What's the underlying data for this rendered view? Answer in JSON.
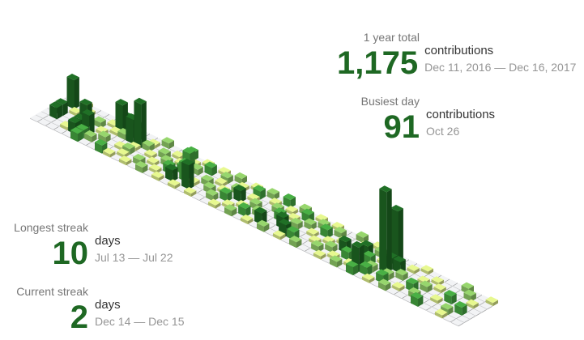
{
  "chart_data": {
    "type": "isometric-contribution-calendar",
    "date_range": "Dec 11, 2016 — Dec 16, 2017",
    "levels": [
      "#ebedf0",
      "#d6e685",
      "#8cc665",
      "#44a340",
      "#1e6823"
    ],
    "cells": [
      {
        "w": 1,
        "d": 1,
        "c": 1
      },
      {
        "w": 1,
        "d": 3,
        "c": 4
      },
      {
        "w": 1,
        "d": 4,
        "c": 4
      },
      {
        "w": 2,
        "d": 0,
        "c": 1
      },
      {
        "w": 2,
        "d": 2,
        "c": 1
      },
      {
        "w": 3,
        "d": 1,
        "c": 1
      },
      {
        "w": 3,
        "d": 5,
        "c": 1
      },
      {
        "w": 4,
        "d": 3,
        "c": 3
      },
      {
        "w": 4,
        "d": 4,
        "c": 4
      },
      {
        "w": 4,
        "d": 5,
        "c": 4
      },
      {
        "w": 5,
        "d": 2,
        "c": 2
      },
      {
        "w": 5,
        "d": 4,
        "c": 2
      },
      {
        "w": 5,
        "d": 5,
        "c": 3
      },
      {
        "w": 5,
        "d": 6,
        "c": 3
      },
      {
        "w": 6,
        "d": 1,
        "c": 1
      },
      {
        "w": 6,
        "d": 3,
        "c": 1
      },
      {
        "w": 6,
        "d": 5,
        "c": 2
      },
      {
        "w": 7,
        "d": 0,
        "c": 4
      },
      {
        "w": 7,
        "d": 2,
        "c": 1
      },
      {
        "w": 7,
        "d": 4,
        "c": 2
      },
      {
        "w": 8,
        "d": 0,
        "c": 3
      },
      {
        "w": 8,
        "d": 2,
        "c": 2
      },
      {
        "w": 8,
        "d": 6,
        "c": 3
      },
      {
        "w": 9,
        "d": 1,
        "c": 3
      },
      {
        "w": 9,
        "d": 2,
        "c": 4
      },
      {
        "w": 9,
        "d": 4,
        "c": 1
      },
      {
        "w": 9,
        "d": 6,
        "c": 1
      },
      {
        "w": 10,
        "d": 3,
        "c": 1
      },
      {
        "w": 10,
        "d": 4,
        "c": 2
      },
      {
        "w": 10,
        "d": 5,
        "c": 1
      },
      {
        "w": 11,
        "d": 1,
        "c": 1
      },
      {
        "w": 11,
        "d": 2,
        "c": 2
      },
      {
        "w": 11,
        "d": 6,
        "c": 1
      },
      {
        "w": 12,
        "d": 0,
        "c": 2
      },
      {
        "w": 12,
        "d": 3,
        "c": 1
      },
      {
        "w": 12,
        "d": 5,
        "c": 2
      },
      {
        "w": 13,
        "d": 2,
        "c": 2
      },
      {
        "w": 13,
        "d": 4,
        "c": 1
      },
      {
        "w": 13,
        "d": 6,
        "c": 2
      },
      {
        "w": 14,
        "d": 1,
        "c": 1
      },
      {
        "w": 14,
        "d": 3,
        "c": 2
      },
      {
        "w": 14,
        "d": 5,
        "c": 1
      },
      {
        "w": 15,
        "d": 0,
        "c": 3
      },
      {
        "w": 15,
        "d": 2,
        "c": 1
      },
      {
        "w": 15,
        "d": 4,
        "c": 3
      },
      {
        "w": 15,
        "d": 6,
        "c": 1
      },
      {
        "w": 16,
        "d": 1,
        "c": 1
      },
      {
        "w": 16,
        "d": 3,
        "c": 3
      },
      {
        "w": 16,
        "d": 5,
        "c": 4
      },
      {
        "w": 17,
        "d": 0,
        "c": 1
      },
      {
        "w": 17,
        "d": 2,
        "c": 2
      },
      {
        "w": 17,
        "d": 6,
        "c": 1
      },
      {
        "w": 18,
        "d": 1,
        "c": 3
      },
      {
        "w": 18,
        "d": 4,
        "c": 1
      },
      {
        "w": 18,
        "d": 5,
        "c": 2
      },
      {
        "w": 19,
        "d": 0,
        "c": 1
      },
      {
        "w": 19,
        "d": 3,
        "c": 2
      },
      {
        "w": 19,
        "d": 6,
        "c": 1
      },
      {
        "w": 20,
        "d": 1,
        "c": 2
      },
      {
        "w": 20,
        "d": 2,
        "c": 1
      },
      {
        "w": 20,
        "d": 4,
        "c": 2
      },
      {
        "w": 21,
        "d": 0,
        "c": 2
      },
      {
        "w": 21,
        "d": 3,
        "c": 1
      },
      {
        "w": 21,
        "d": 5,
        "c": 2
      },
      {
        "w": 22,
        "d": 1,
        "c": 1
      },
      {
        "w": 22,
        "d": 2,
        "c": 2
      },
      {
        "w": 22,
        "d": 4,
        "c": 3
      },
      {
        "w": 22,
        "d": 6,
        "c": 1
      },
      {
        "w": 23,
        "d": 0,
        "c": 1
      },
      {
        "w": 23,
        "d": 3,
        "c": 4
      },
      {
        "w": 23,
        "d": 5,
        "c": 1
      },
      {
        "w": 24,
        "d": 1,
        "c": 3
      },
      {
        "w": 24,
        "d": 2,
        "c": 1
      },
      {
        "w": 24,
        "d": 4,
        "c": 1
      },
      {
        "w": 24,
        "d": 6,
        "c": 2
      },
      {
        "w": 25,
        "d": 0,
        "c": 2
      },
      {
        "w": 25,
        "d": 3,
        "c": 2
      },
      {
        "w": 25,
        "d": 5,
        "c": 3
      },
      {
        "w": 26,
        "d": 1,
        "c": 1
      },
      {
        "w": 26,
        "d": 4,
        "c": 2
      },
      {
        "w": 26,
        "d": 6,
        "c": 1
      },
      {
        "w": 27,
        "d": 0,
        "c": 3
      },
      {
        "w": 27,
        "d": 2,
        "c": 2
      },
      {
        "w": 27,
        "d": 5,
        "c": 4
      },
      {
        "w": 28,
        "d": 1,
        "c": 1
      },
      {
        "w": 28,
        "d": 3,
        "c": 3
      },
      {
        "w": 28,
        "d": 6,
        "c": 2
      },
      {
        "w": 29,
        "d": 0,
        "c": 2
      },
      {
        "w": 29,
        "d": 2,
        "c": 1
      },
      {
        "w": 29,
        "d": 4,
        "c": 4
      },
      {
        "w": 30,
        "d": 1,
        "c": 3
      },
      {
        "w": 30,
        "d": 3,
        "c": 2
      },
      {
        "w": 30,
        "d": 5,
        "c": 4
      },
      {
        "w": 30,
        "d": 6,
        "c": 1
      },
      {
        "w": 31,
        "d": 0,
        "c": 1
      },
      {
        "w": 31,
        "d": 2,
        "c": 2
      },
      {
        "w": 31,
        "d": 5,
        "c": 3
      },
      {
        "w": 32,
        "d": 1,
        "c": 2
      },
      {
        "w": 32,
        "d": 3,
        "c": 1
      },
      {
        "w": 32,
        "d": 6,
        "c": 2
      },
      {
        "w": 33,
        "d": 0,
        "c": 1
      },
      {
        "w": 33,
        "d": 2,
        "c": 3
      },
      {
        "w": 33,
        "d": 4,
        "c": 1
      },
      {
        "w": 34,
        "d": 1,
        "c": 2
      },
      {
        "w": 34,
        "d": 3,
        "c": 1
      },
      {
        "w": 34,
        "d": 5,
        "c": 2
      },
      {
        "w": 35,
        "d": 2,
        "c": 1
      },
      {
        "w": 35,
        "d": 4,
        "c": 2
      },
      {
        "w": 35,
        "d": 6,
        "c": 1
      },
      {
        "w": 36,
        "d": 0,
        "c": 2
      },
      {
        "w": 36,
        "d": 3,
        "c": 4
      },
      {
        "w": 36,
        "d": 5,
        "c": 1
      },
      {
        "w": 37,
        "d": 1,
        "c": 1
      },
      {
        "w": 37,
        "d": 4,
        "c": 3
      },
      {
        "w": 37,
        "d": 6,
        "c": 2
      },
      {
        "w": 38,
        "d": 0,
        "c": 1
      },
      {
        "w": 38,
        "d": 2,
        "c": 4
      },
      {
        "w": 38,
        "d": 5,
        "c": 1
      },
      {
        "w": 39,
        "d": 1,
        "c": 2
      },
      {
        "w": 39,
        "d": 3,
        "c": 3
      },
      {
        "w": 39,
        "d": 6,
        "c": 3
      },
      {
        "w": 40,
        "d": 0,
        "c": 1
      },
      {
        "w": 40,
        "d": 2,
        "c": 1
      },
      {
        "w": 40,
        "d": 4,
        "c": 2
      },
      {
        "w": 40,
        "d": 5,
        "c": 3
      },
      {
        "w": 41,
        "d": 1,
        "c": 4
      },
      {
        "w": 41,
        "d": 2,
        "c": 4
      },
      {
        "w": 41,
        "d": 3,
        "c": 3
      },
      {
        "w": 41,
        "d": 6,
        "c": 1
      },
      {
        "w": 42,
        "d": 2,
        "c": 4
      },
      {
        "w": 42,
        "d": 4,
        "c": 2
      },
      {
        "w": 42,
        "d": 5,
        "c": 3
      },
      {
        "w": 43,
        "d": 1,
        "c": 1
      },
      {
        "w": 43,
        "d": 3,
        "c": 2
      },
      {
        "w": 43,
        "d": 6,
        "c": 2
      },
      {
        "w": 44,
        "d": 0,
        "c": 1
      },
      {
        "w": 44,
        "d": 5,
        "c": 1
      },
      {
        "w": 45,
        "d": 2,
        "c": 1
      },
      {
        "w": 45,
        "d": 4,
        "c": 3
      },
      {
        "w": 46,
        "d": 1,
        "c": 1
      },
      {
        "w": 46,
        "d": 3,
        "c": 2
      },
      {
        "w": 46,
        "d": 5,
        "c": 2
      },
      {
        "w": 47,
        "d": 2,
        "c": 1
      },
      {
        "w": 47,
        "d": 6,
        "c": 3
      },
      {
        "w": 48,
        "d": 4,
        "c": 1
      },
      {
        "w": 49,
        "d": 0,
        "c": 2
      },
      {
        "w": 49,
        "d": 3,
        "c": 3
      },
      {
        "w": 50,
        "d": 1,
        "c": 2
      },
      {
        "w": 50,
        "d": 5,
        "c": 2
      },
      {
        "w": 50,
        "d": 6,
        "c": 1
      },
      {
        "w": 51,
        "d": 2,
        "c": 1
      },
      {
        "w": 51,
        "d": 4,
        "c": 3
      },
      {
        "w": 52,
        "d": 0,
        "c": 1
      }
    ],
    "tall_bars": [
      {
        "w": 1,
        "d": 1,
        "c": 4,
        "h": 36
      },
      {
        "w": 4,
        "d": 3,
        "c": 4,
        "h": 28
      },
      {
        "w": 5,
        "d": 4,
        "c": 4,
        "h": 24
      },
      {
        "w": 7,
        "d": 1,
        "c": 4,
        "h": 34
      },
      {
        "w": 9,
        "d": 2,
        "c": 4,
        "h": 30
      },
      {
        "w": 10,
        "d": 2,
        "c": 4,
        "h": 54
      },
      {
        "w": 16,
        "d": 2,
        "c": 3,
        "h": 22
      },
      {
        "w": 17,
        "d": 4,
        "c": 3,
        "h": 22
      },
      {
        "w": 18,
        "d": 5,
        "c": 4,
        "h": 30
      },
      {
        "w": 39,
        "d": 5,
        "c": 4,
        "h": 30
      },
      {
        "w": 41,
        "d": 3,
        "c": 4,
        "h": 100
      },
      {
        "w": 41,
        "d": 1,
        "c": 4,
        "h": 68
      }
    ]
  },
  "stats": {
    "year_total": {
      "label": "1 year total",
      "value": "1,175",
      "unit": "contributions",
      "range": "Dec 11, 2016 — Dec 16, 2017"
    },
    "busiest_day": {
      "label": "Busiest day",
      "value": "91",
      "unit": "contributions",
      "range": "Oct 26"
    },
    "longest_streak": {
      "label": "Longest streak",
      "value": "10",
      "unit": "days",
      "range": "Jul 13 — Jul 22"
    },
    "current_streak": {
      "label": "Current streak",
      "value": "2",
      "unit": "days",
      "range": "Dec 14 — Dec 15"
    }
  }
}
